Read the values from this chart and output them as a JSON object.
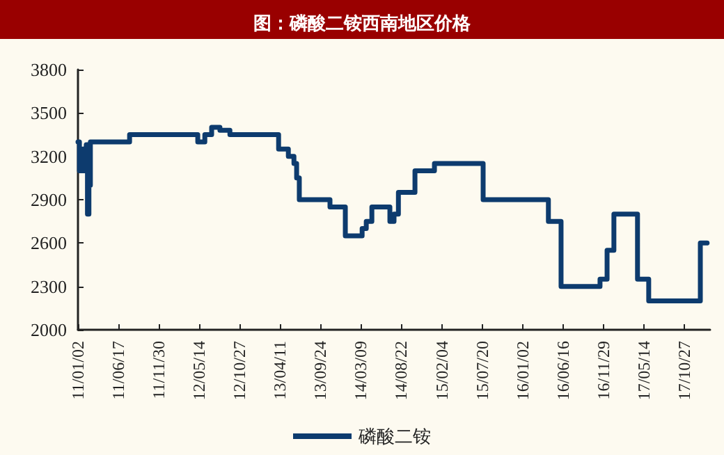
{
  "chart_data": {
    "type": "step",
    "title": "图：磷酸二铵西南地区价格",
    "series": [
      {
        "name": "磷酸二铵",
        "color": "#0d3b6e",
        "x": [
          "2011-01-02",
          "2011-01-08",
          "2011-01-20",
          "2011-01-26",
          "2011-02-05",
          "2011-02-10",
          "2011-02-16",
          "2011-02-22",
          "2011-08-02",
          "2012-05-08",
          "2012-06-06",
          "2012-07-04",
          "2012-08-07",
          "2012-09-17",
          "2013-04-05",
          "2013-05-15",
          "2013-06-07",
          "2013-06-18",
          "2013-06-29",
          "2013-11-02",
          "2014-01-04",
          "2014-03-14",
          "2014-03-31",
          "2014-04-23",
          "2014-07-06",
          "2014-07-23",
          "2014-08-10",
          "2014-10-17",
          "2015-01-05",
          "2015-07-24",
          "2016-04-17",
          "2016-06-08",
          "2016-11-15",
          "2016-12-14",
          "2017-01-11",
          "2017-04-18",
          "2017-06-03",
          "2018-01-01",
          "2018-01-29"
        ],
        "values": [
          3300,
          3100,
          3250,
          3100,
          3280,
          2800,
          3000,
          3300,
          3350,
          3300,
          3350,
          3400,
          3380,
          3350,
          3250,
          3200,
          3150,
          3050,
          2900,
          2850,
          2650,
          2700,
          2750,
          2850,
          2750,
          2800,
          2950,
          3100,
          3150,
          2900,
          2750,
          2300,
          2350,
          2550,
          2800,
          2350,
          2200,
          2600,
          2600
        ]
      }
    ],
    "xlim": [
      "2011-01-02",
      "2018-02-10"
    ],
    "xticks": [
      {
        "value": "2011-01-02",
        "label": "11/01/02"
      },
      {
        "value": "2011-06-17",
        "label": "11/06/17"
      },
      {
        "value": "2011-11-30",
        "label": "11/11/30"
      },
      {
        "value": "2012-05-14",
        "label": "12/05/14"
      },
      {
        "value": "2012-10-27",
        "label": "12/10/27"
      },
      {
        "value": "2013-04-11",
        "label": "13/04/11"
      },
      {
        "value": "2013-09-24",
        "label": "13/09/24"
      },
      {
        "value": "2014-03-09",
        "label": "14/03/09"
      },
      {
        "value": "2014-08-22",
        "label": "14/08/22"
      },
      {
        "value": "2015-02-04",
        "label": "15/02/04"
      },
      {
        "value": "2015-07-20",
        "label": "15/07/20"
      },
      {
        "value": "2016-01-02",
        "label": "16/01/02"
      },
      {
        "value": "2016-06-16",
        "label": "16/06/16"
      },
      {
        "value": "2016-11-29",
        "label": "16/11/29"
      },
      {
        "value": "2017-05-14",
        "label": "17/05/14"
      },
      {
        "value": "2017-10-27",
        "label": "17/10/27"
      }
    ],
    "ylim": [
      2000,
      3800
    ],
    "yticks": [
      2000,
      2300,
      2600,
      2900,
      3200,
      3500,
      3800
    ],
    "grid": false,
    "legend": "bottom",
    "marker": "none",
    "line_style": "solid"
  }
}
